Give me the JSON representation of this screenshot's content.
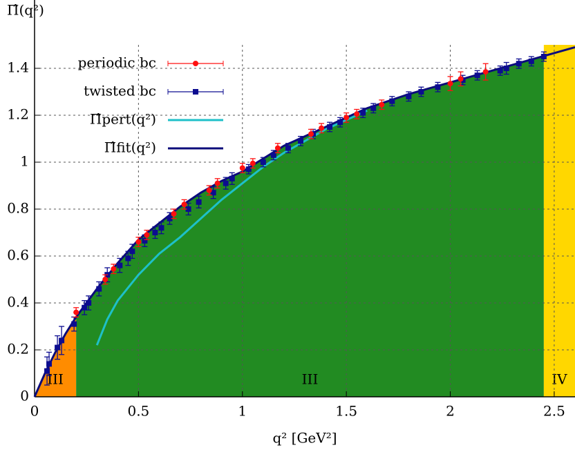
{
  "chart_data": {
    "type": "scatter",
    "y_label": "Π̂(q²)",
    "x_label": "q² [GeV²]",
    "xlim": [
      0,
      2.6
    ],
    "ylim": [
      0,
      1.5
    ],
    "xticks": [
      0,
      0.5,
      1,
      1.5,
      2,
      2.5
    ],
    "yticks": [
      0,
      0.2,
      0.4,
      0.6,
      0.8,
      1,
      1.2,
      1.4
    ],
    "grid": true,
    "legend": "upper left",
    "regions": [
      {
        "label": "III",
        "from": 0,
        "to": 0.2,
        "color": "#ff8c00",
        "fill_to_top": false
      },
      {
        "label": "III",
        "from": 0.2,
        "to": 2.45,
        "color": "#228b22",
        "fill_to_top": false
      },
      {
        "label": "IV",
        "from": 2.45,
        "to": 2.6,
        "color": "#ffd700",
        "fill_to_top": true
      }
    ],
    "series": [
      {
        "name": "periodic bc",
        "color": "#ff1010",
        "kind": "points",
        "marker": "circle",
        "x": [
          0.2,
          0.34,
          0.38,
          0.5,
          0.54,
          0.67,
          0.72,
          0.84,
          0.88,
          1.0,
          1.05,
          1.17,
          1.33,
          1.38,
          1.5,
          1.55,
          1.67,
          2.0,
          2.05,
          2.17
        ],
        "values": [
          0.36,
          0.5,
          0.545,
          0.66,
          0.69,
          0.78,
          0.82,
          0.88,
          0.91,
          0.975,
          0.995,
          1.06,
          1.12,
          1.145,
          1.19,
          1.205,
          1.245,
          1.335,
          1.355,
          1.385
        ],
        "errors": [
          0.02,
          0.02,
          0.02,
          0.02,
          0.02,
          0.02,
          0.02,
          0.02,
          0.02,
          0.02,
          0.02,
          0.02,
          0.02,
          0.02,
          0.02,
          0.02,
          0.02,
          0.03,
          0.03,
          0.035
        ]
      },
      {
        "name": "twisted bc",
        "color": "#0c0c90",
        "kind": "points",
        "marker": "square",
        "x": [
          0.06,
          0.07,
          0.11,
          0.13,
          0.19,
          0.24,
          0.26,
          0.31,
          0.35,
          0.41,
          0.45,
          0.47,
          0.53,
          0.58,
          0.61,
          0.65,
          0.74,
          0.79,
          0.86,
          0.92,
          0.95,
          1.03,
          1.1,
          1.15,
          1.22,
          1.28,
          1.34,
          1.42,
          1.47,
          1.58,
          1.63,
          1.72,
          1.8,
          1.86,
          1.94,
          2.06,
          2.13,
          2.24,
          2.27,
          2.33,
          2.39,
          2.45
        ],
        "values": [
          0.11,
          0.14,
          0.21,
          0.24,
          0.31,
          0.38,
          0.4,
          0.46,
          0.52,
          0.56,
          0.59,
          0.62,
          0.665,
          0.7,
          0.72,
          0.76,
          0.8,
          0.83,
          0.87,
          0.91,
          0.93,
          0.97,
          1.0,
          1.03,
          1.06,
          1.09,
          1.12,
          1.15,
          1.17,
          1.21,
          1.23,
          1.26,
          1.28,
          1.3,
          1.32,
          1.35,
          1.37,
          1.39,
          1.4,
          1.42,
          1.43,
          1.45
        ],
        "errors": [
          0.06,
          0.05,
          0.05,
          0.06,
          0.03,
          0.03,
          0.03,
          0.03,
          0.03,
          0.03,
          0.03,
          0.03,
          0.025,
          0.025,
          0.025,
          0.025,
          0.025,
          0.025,
          0.025,
          0.025,
          0.025,
          0.02,
          0.02,
          0.02,
          0.02,
          0.02,
          0.02,
          0.02,
          0.02,
          0.02,
          0.02,
          0.02,
          0.02,
          0.02,
          0.02,
          0.02,
          0.02,
          0.02,
          0.025,
          0.02,
          0.02,
          0.02
        ]
      },
      {
        "name": "Π̂pert(q²)",
        "color": "#1ec0c8",
        "kind": "line",
        "x": [
          0.3,
          0.35,
          0.4,
          0.5,
          0.6,
          0.7,
          0.8,
          0.9,
          1.0,
          1.1,
          1.2,
          1.4,
          1.6
        ],
        "values": [
          0.22,
          0.33,
          0.41,
          0.52,
          0.61,
          0.68,
          0.76,
          0.84,
          0.91,
          0.98,
          1.04,
          1.14,
          1.22
        ]
      },
      {
        "name": "Π̂fit(q²)",
        "color": "#0b0b7a",
        "kind": "line",
        "x": [
          0,
          0.05,
          0.1,
          0.15,
          0.2,
          0.3,
          0.4,
          0.5,
          0.6,
          0.7,
          0.8,
          0.9,
          1.0,
          1.2,
          1.4,
          1.6,
          1.8,
          2.0,
          2.2,
          2.4,
          2.6
        ],
        "values": [
          0,
          0.1,
          0.19,
          0.27,
          0.34,
          0.46,
          0.57,
          0.67,
          0.74,
          0.81,
          0.87,
          0.92,
          0.96,
          1.07,
          1.15,
          1.23,
          1.29,
          1.34,
          1.39,
          1.44,
          1.49
        ]
      }
    ]
  }
}
